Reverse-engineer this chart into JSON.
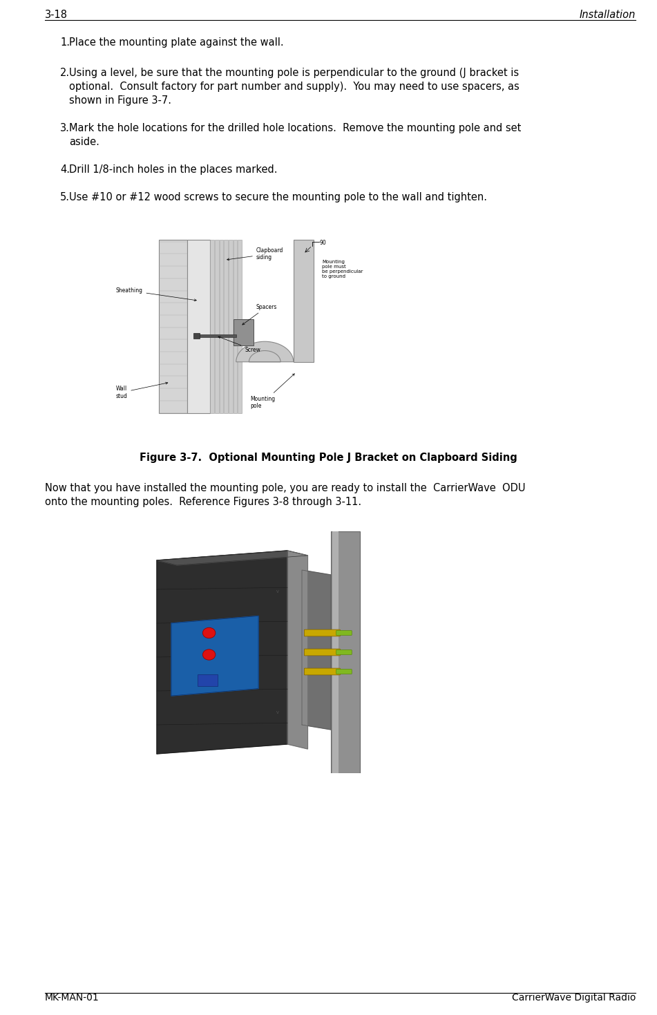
{
  "header_left": "3-18",
  "header_right": "Installation",
  "footer_left": "MK-MAN-01",
  "footer_right": "CarrierWave Digital Radio",
  "item1": "Place the mounting plate against the wall.",
  "item2_line1": "Using a level, be sure that the mounting pole is perpendicular to the ground (J bracket is",
  "item2_line2": "optional.  Consult factory for part number and supply).  You may need to use spacers, as",
  "item2_line3": "shown in Figure 3-7.",
  "item3_line1": "Mark the hole locations for the drilled hole locations.  Remove the mounting pole and set",
  "item3_line2": "aside.",
  "item4": "Drill 1/8-inch holes in the places marked.",
  "item5": "Use #10 or #12 wood screws to secure the mounting pole to the wall and tighten.",
  "figure1_caption": "Figure 3-7.  Optional Mounting Pole J Bracket on Clapboard Siding",
  "para2_line1": "Now that you have installed the mounting pole, you are ready to install the  CarrierWave  ODU",
  "para2_line2": "onto the mounting poles.  Reference Figures 3-8 through 3-11.",
  "bg_color": "#ffffff",
  "text_color": "#000000",
  "fs_header": 10.5,
  "fs_body": 10.5,
  "fs_footer": 10.0
}
